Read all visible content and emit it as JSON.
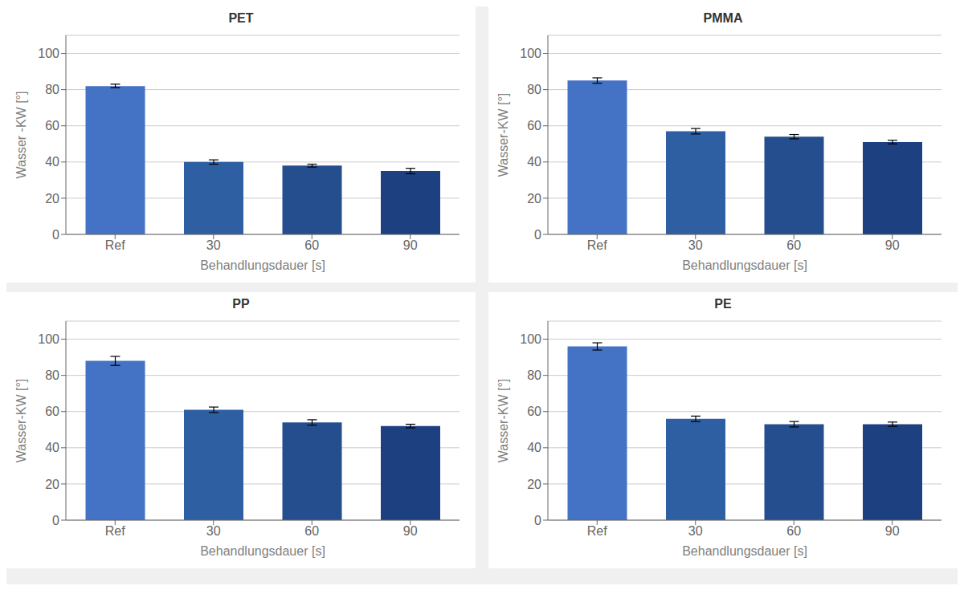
{
  "chart_data": [
    {
      "type": "bar",
      "title": "PET",
      "xlabel": "Behandlungsdauer [s]",
      "ylabel": "Wasser -KW [°]",
      "categories": [
        "Ref",
        "30",
        "60",
        "90"
      ],
      "values": [
        82,
        40,
        38,
        35
      ],
      "errors": [
        1.0,
        1.2,
        0.8,
        1.5
      ],
      "colors": [
        "#4472C4",
        "#2E5FA3",
        "#254E8E",
        "#1D4080"
      ],
      "ylim": [
        0,
        110
      ],
      "yticks": [
        0,
        20,
        40,
        60,
        80,
        100
      ],
      "grid": true
    },
    {
      "type": "bar",
      "title": "PMMA",
      "xlabel": "Behandlungsdauer [s]",
      "ylabel": "Wasser-KW [°]",
      "categories": [
        "Ref",
        "30",
        "60",
        "90"
      ],
      "values": [
        85,
        57,
        54,
        51
      ],
      "errors": [
        1.5,
        1.5,
        1.2,
        1.0
      ],
      "colors": [
        "#4472C4",
        "#2E5FA3",
        "#254E8E",
        "#1D4080"
      ],
      "ylim": [
        0,
        110
      ],
      "yticks": [
        0,
        20,
        40,
        60,
        80,
        100
      ],
      "grid": true
    },
    {
      "type": "bar",
      "title": "PP",
      "xlabel": "Behandlungsdauer [s]",
      "ylabel": "Wasser-KW [°]",
      "categories": [
        "Ref",
        "30",
        "60",
        "90"
      ],
      "values": [
        88,
        61,
        54,
        52
      ],
      "errors": [
        2.5,
        1.5,
        1.5,
        1.0
      ],
      "colors": [
        "#4472C4",
        "#2E5FA3",
        "#254E8E",
        "#1D4080"
      ],
      "ylim": [
        0,
        110
      ],
      "yticks": [
        0,
        20,
        40,
        60,
        80,
        100
      ],
      "grid": true
    },
    {
      "type": "bar",
      "title": "PE",
      "xlabel": "Behandlungsdauer [s]",
      "ylabel": "Wasser-KW [°]",
      "categories": [
        "Ref",
        "30",
        "60",
        "90"
      ],
      "values": [
        96,
        56,
        53,
        53
      ],
      "errors": [
        2.0,
        1.5,
        1.5,
        1.2
      ],
      "colors": [
        "#4472C4",
        "#2E5FA3",
        "#254E8E",
        "#1D4080"
      ],
      "ylim": [
        0,
        110
      ],
      "yticks": [
        0,
        20,
        40,
        60,
        80,
        100
      ],
      "grid": true
    }
  ]
}
